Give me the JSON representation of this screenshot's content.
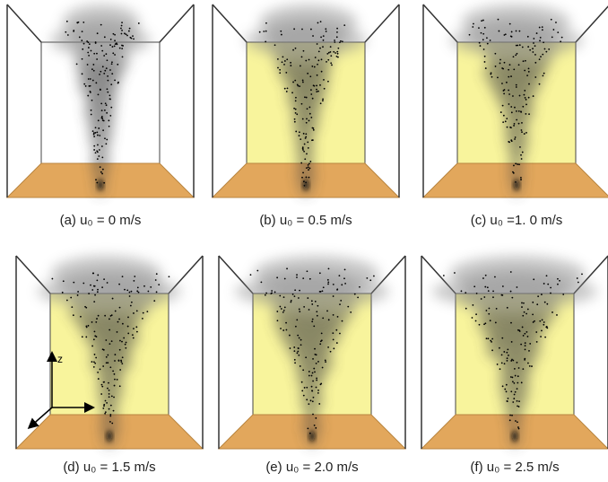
{
  "panels": [
    {
      "caption": "(a) u₀ = 0 m/s"
    },
    {
      "caption": "(b) u₀ = 0.5 m/s"
    },
    {
      "caption": "(c) u₀ =1. 0 m/s"
    },
    {
      "caption": "(d) u₀ = 1.5 m/s",
      "axis_label": "z"
    },
    {
      "caption": "(e) u₀ = 2.0 m/s"
    },
    {
      "caption": "(f) u₀ = 2.5 m/s"
    }
  ]
}
